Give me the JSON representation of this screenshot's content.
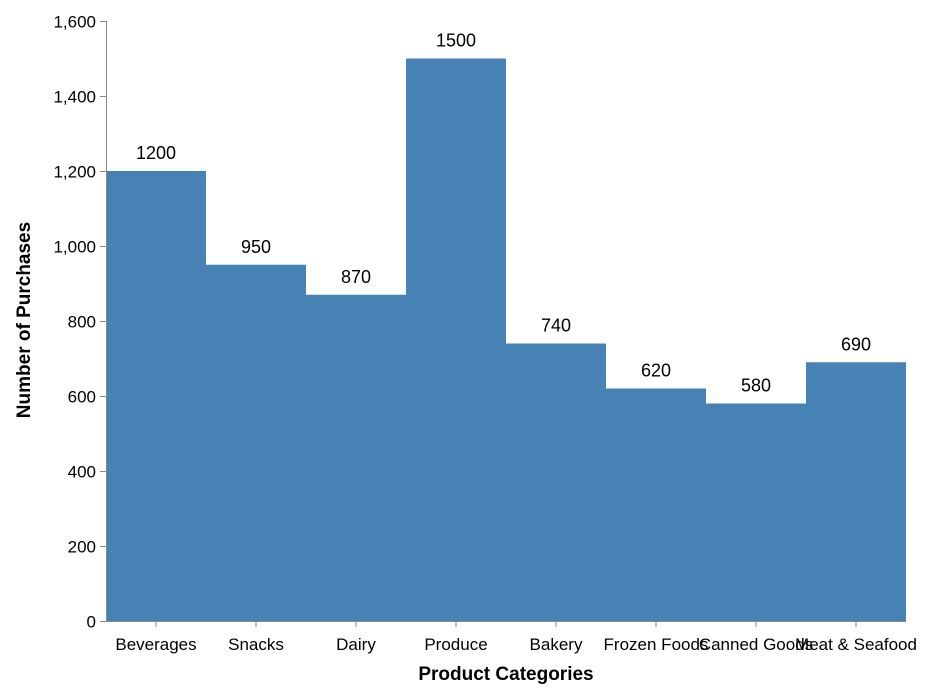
{
  "chart_data": {
    "type": "bar",
    "title": "",
    "xlabel": "Product Categories",
    "ylabel": "Number of Purchases",
    "categories": [
      "Beverages",
      "Snacks",
      "Dairy",
      "Produce",
      "Bakery",
      "Frozen Foods",
      "Canned Goods",
      "Meat & Seafood"
    ],
    "values": [
      1200,
      950,
      870,
      1500,
      740,
      620,
      580,
      690
    ],
    "data_labels": [
      "1200",
      "950",
      "870",
      "1500",
      "740",
      "620",
      "580",
      "690"
    ],
    "ylim": [
      0,
      1600
    ],
    "y_ticks": [
      0,
      200,
      400,
      600,
      800,
      1000,
      1200,
      1400,
      1600
    ],
    "y_tick_labels": [
      "0",
      "200",
      "400",
      "600",
      "800",
      "1,000",
      "1,200",
      "1,400",
      "1,600"
    ],
    "grid": false,
    "legend": "none",
    "bar_color": "#4682b4",
    "axis_color": "#888888"
  }
}
